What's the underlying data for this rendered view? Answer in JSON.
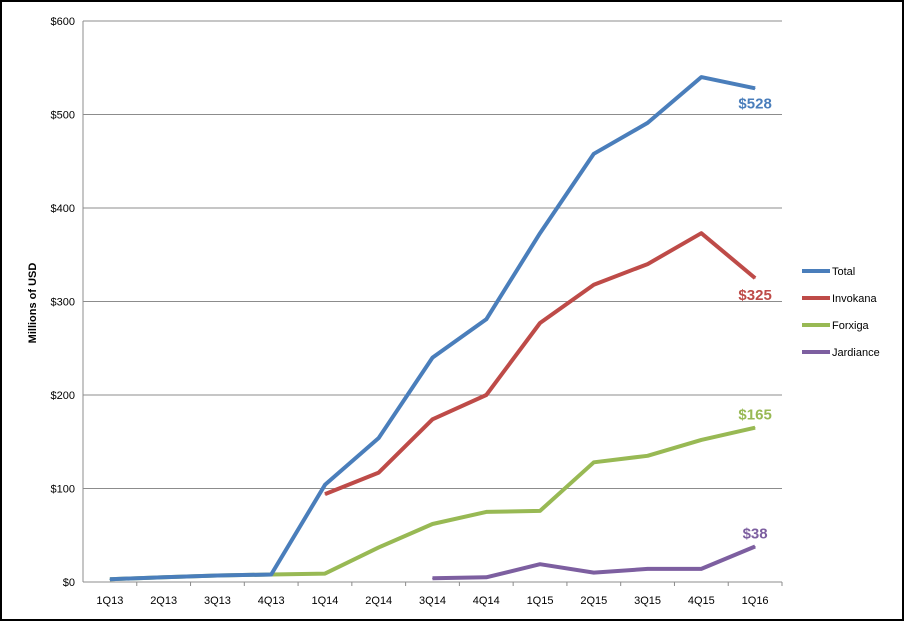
{
  "chart_data": {
    "type": "line",
    "title": "",
    "xlabel": "",
    "ylabel": "Millions of USD",
    "ylim": [
      0,
      600
    ],
    "y_ticks": [
      0,
      100,
      200,
      300,
      400,
      500,
      600
    ],
    "y_tick_labels": [
      "$0",
      "$100",
      "$200",
      "$300",
      "$400",
      "$500",
      "$600"
    ],
    "categories": [
      "1Q13",
      "2Q13",
      "3Q13",
      "4Q13",
      "1Q14",
      "2Q14",
      "3Q14",
      "4Q14",
      "1Q15",
      "2Q15",
      "3Q15",
      "4Q15",
      "1Q16"
    ],
    "grid": "horizontal",
    "legend_position": "right",
    "series": [
      {
        "name": "Total",
        "color": "#4A7EBB",
        "values": [
          3,
          5,
          7,
          8,
          104,
          154,
          240,
          281,
          373,
          458,
          491,
          540,
          528
        ],
        "end_label": "$528"
      },
      {
        "name": "Invokana",
        "color": "#BE4B48",
        "values": [
          null,
          null,
          null,
          null,
          94,
          117,
          174,
          200,
          277,
          318,
          340,
          373,
          325
        ],
        "end_label": "$325"
      },
      {
        "name": "Forxiga",
        "color": "#98B954",
        "values": [
          3,
          5,
          7,
          8,
          9,
          37,
          62,
          75,
          76,
          128,
          135,
          152,
          165
        ],
        "end_label": "$165"
      },
      {
        "name": "Jardiance",
        "color": "#7D5FA0",
        "values": [
          null,
          null,
          null,
          null,
          null,
          null,
          4,
          5,
          19,
          10,
          14,
          14,
          38
        ],
        "end_label": "$38"
      }
    ]
  }
}
